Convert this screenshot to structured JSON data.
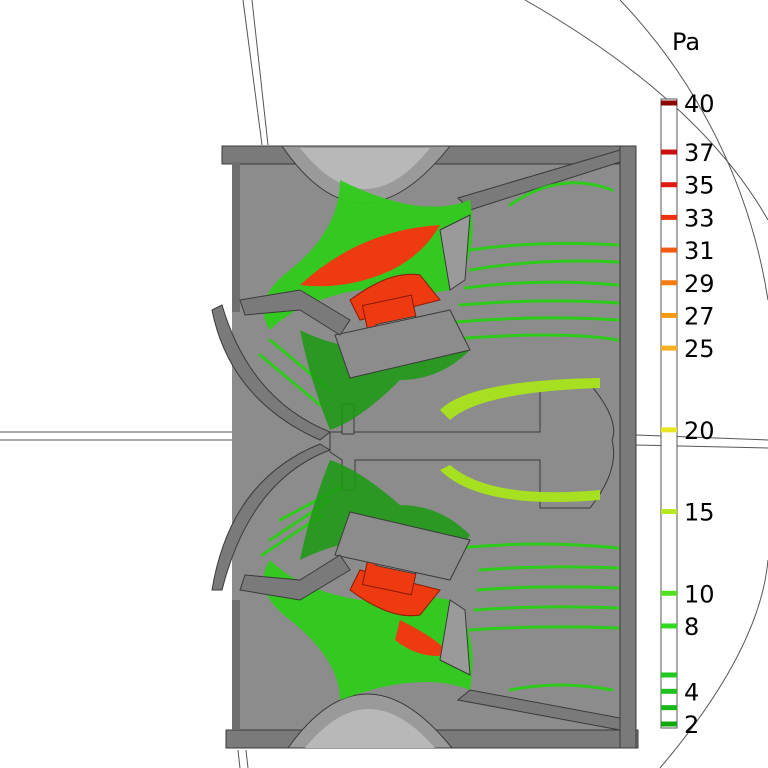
{
  "colorbar": {
    "unit": "Pa",
    "min": 2,
    "max": 40,
    "ticks": [
      {
        "value": 40,
        "label": "40",
        "color": "#8b0000"
      },
      {
        "value": 37,
        "label": "37",
        "color": "#c81010"
      },
      {
        "value": 35,
        "label": "35",
        "color": "#e01a10"
      },
      {
        "value": 33,
        "label": "33",
        "color": "#ee3010"
      },
      {
        "value": 31,
        "label": "31",
        "color": "#f25a10"
      },
      {
        "value": 29,
        "label": "29",
        "color": "#f57a10"
      },
      {
        "value": 27,
        "label": "27",
        "color": "#f89a10"
      },
      {
        "value": 25,
        "label": "25",
        "color": "#fab020"
      },
      {
        "value": 20,
        "label": "20",
        "color": "#e8e820"
      },
      {
        "value": 15,
        "label": "15",
        "color": "#b8e820"
      },
      {
        "value": 10,
        "label": "10",
        "color": "#50e020"
      },
      {
        "value": 8,
        "label": "8",
        "color": "#30d820"
      },
      {
        "value": 4,
        "label": "4",
        "color": "#20c020"
      },
      {
        "value": 2,
        "label": "2",
        "color": "#10a810"
      }
    ],
    "extra_levels": [
      {
        "value": 5,
        "color": "#20c820"
      },
      {
        "value": 3,
        "color": "#18b818"
      }
    ]
  },
  "colors": {
    "housing": "#8c8c8c",
    "housing_edge": "#3a3a3a",
    "housing_light": "#b4b4b4",
    "iso_green": "#2ecc1a",
    "iso_green_dark": "#1a9a10",
    "iso_red": "#ee3a10",
    "iso_yellowgreen": "#a6e020"
  }
}
